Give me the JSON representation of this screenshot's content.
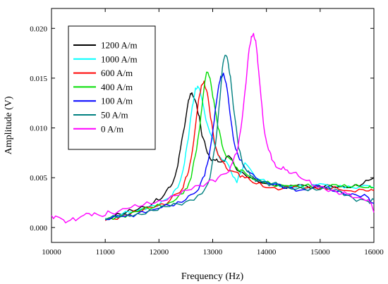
{
  "chart_data": {
    "type": "line",
    "xlabel": "Frequency (Hz)",
    "ylabel": "Amplitude (V)",
    "xlim": [
      10000,
      16000
    ],
    "ylim": [
      -0.0015,
      0.022
    ],
    "xticks": [
      10000,
      11000,
      12000,
      13000,
      14000,
      15000,
      16000
    ],
    "yticks": [
      0.0,
      0.005,
      0.01,
      0.015,
      0.02
    ],
    "xtick_labels": [
      "10000",
      "11000",
      "12000",
      "13000",
      "14000",
      "15000",
      "16000"
    ],
    "ytick_labels": [
      "0.000",
      "0.005",
      "0.010",
      "0.015",
      "0.020"
    ],
    "grid": false,
    "legend_position": "top-left",
    "series": [
      {
        "name": "1200 A/m",
        "color": "#000000",
        "x": [
          11000,
          11300,
          11600,
          11900,
          12100,
          12250,
          12350,
          12450,
          12550,
          12600,
          12650,
          12700,
          12750,
          12800,
          12900,
          13000,
          13100,
          13200,
          13300,
          13500,
          13700,
          14000,
          14300,
          14600,
          14900,
          15200,
          15500,
          15800,
          16000
        ],
        "y": [
          0.0009,
          0.0013,
          0.0018,
          0.0025,
          0.0033,
          0.0044,
          0.0062,
          0.0095,
          0.0128,
          0.0134,
          0.013,
          0.0124,
          0.0112,
          0.0092,
          0.0075,
          0.0068,
          0.0066,
          0.0067,
          0.0072,
          0.0056,
          0.005,
          0.0044,
          0.004,
          0.0043,
          0.004,
          0.0042,
          0.004,
          0.0044,
          0.005
        ]
      },
      {
        "name": "1000 A/m",
        "color": "#00FFFF",
        "x": [
          11000,
          11300,
          11600,
          11900,
          12200,
          12350,
          12450,
          12550,
          12620,
          12680,
          12720,
          12780,
          12850,
          12950,
          13050,
          13150,
          13300,
          13450,
          13600,
          13800,
          14100,
          14400,
          14700,
          15000,
          15300,
          15600,
          15900,
          16000
        ],
        "y": [
          0.0009,
          0.0013,
          0.0017,
          0.0022,
          0.003,
          0.004,
          0.0058,
          0.009,
          0.0122,
          0.014,
          0.0142,
          0.0133,
          0.0115,
          0.0095,
          0.008,
          0.007,
          0.0062,
          0.0045,
          0.0065,
          0.005,
          0.0044,
          0.0041,
          0.004,
          0.0044,
          0.0041,
          0.004,
          0.0042,
          0.0041
        ]
      },
      {
        "name": "600 A/m",
        "color": "#FF0000",
        "x": [
          11000,
          11300,
          11600,
          11900,
          12200,
          12450,
          12550,
          12650,
          12720,
          12790,
          12840,
          12900,
          12960,
          13050,
          13150,
          13250,
          13400,
          13550,
          13750,
          14000,
          14300,
          14600,
          14900,
          15200,
          15500,
          15800,
          16000
        ],
        "y": [
          0.0007,
          0.0012,
          0.0016,
          0.002,
          0.0027,
          0.004,
          0.0056,
          0.0088,
          0.012,
          0.0143,
          0.0147,
          0.0135,
          0.011,
          0.0082,
          0.0068,
          0.006,
          0.0056,
          0.0052,
          0.0045,
          0.004,
          0.0039,
          0.0041,
          0.004,
          0.0039,
          0.0037,
          0.0038,
          0.0037
        ]
      },
      {
        "name": "400 A/m",
        "color": "#00DD00",
        "x": [
          11000,
          11300,
          11600,
          11900,
          12200,
          12450,
          12600,
          12700,
          12780,
          12850,
          12900,
          12950,
          13020,
          13100,
          13200,
          13300,
          13450,
          13600,
          13800,
          14100,
          14400,
          14700,
          15000,
          15300,
          15600,
          15900,
          16000
        ],
        "y": [
          0.0008,
          0.0012,
          0.0016,
          0.002,
          0.0025,
          0.0034,
          0.005,
          0.0078,
          0.0112,
          0.0145,
          0.0156,
          0.015,
          0.0128,
          0.01,
          0.0078,
          0.007,
          0.006,
          0.0055,
          0.0048,
          0.0043,
          0.0042,
          0.0042,
          0.004,
          0.0043,
          0.0041,
          0.004,
          0.004
        ]
      },
      {
        "name": "100 A/m",
        "color": "#0000FF",
        "x": [
          11000,
          11300,
          11600,
          11900,
          12200,
          12500,
          12700,
          12850,
          12950,
          13030,
          13100,
          13150,
          13200,
          13250,
          13320,
          13400,
          13500,
          13650,
          13850,
          14100,
          14400,
          14700,
          15000,
          15300,
          15600,
          15900,
          16000
        ],
        "y": [
          0.0008,
          0.0011,
          0.0014,
          0.0018,
          0.0022,
          0.0028,
          0.0036,
          0.0052,
          0.0078,
          0.0108,
          0.0138,
          0.0152,
          0.0155,
          0.0145,
          0.0115,
          0.0085,
          0.0068,
          0.0056,
          0.0048,
          0.0043,
          0.004,
          0.0038,
          0.0041,
          0.0036,
          0.0034,
          0.003,
          0.0024
        ]
      },
      {
        "name": "50 A/m",
        "color": "#008080",
        "x": [
          11000,
          11300,
          11600,
          11900,
          12200,
          12500,
          12800,
          12950,
          13050,
          13120,
          13180,
          13230,
          13280,
          13330,
          13400,
          13480,
          13580,
          13700,
          13900,
          14100,
          14400,
          14700,
          15000,
          15300,
          15600,
          15900,
          16000
        ],
        "y": [
          0.0008,
          0.0011,
          0.0014,
          0.0017,
          0.0021,
          0.0026,
          0.0034,
          0.005,
          0.0082,
          0.0122,
          0.016,
          0.0173,
          0.0168,
          0.0152,
          0.0115,
          0.008,
          0.0062,
          0.0052,
          0.0046,
          0.0044,
          0.004,
          0.0039,
          0.0038,
          0.0038,
          0.003,
          0.0026,
          0.0028
        ]
      },
      {
        "name": "0 A/m",
        "color": "#FF00FF",
        "x": [
          10000,
          10150,
          10300,
          10500,
          10700,
          10900,
          11100,
          11400,
          11700,
          12000,
          12300,
          12600,
          12900,
          13100,
          13300,
          13450,
          13550,
          13620,
          13680,
          13720,
          13760,
          13800,
          13840,
          13900,
          13960,
          14020,
          14100,
          14200,
          14350,
          14500,
          14700,
          14900,
          15100,
          15300,
          15500,
          15700,
          15900,
          16000
        ],
        "y": [
          0.0012,
          0.001,
          0.0006,
          0.0009,
          0.0014,
          0.0012,
          0.0015,
          0.0019,
          0.0022,
          0.0027,
          0.0032,
          0.0038,
          0.0045,
          0.005,
          0.0056,
          0.0075,
          0.011,
          0.0145,
          0.018,
          0.0192,
          0.0195,
          0.0188,
          0.0165,
          0.013,
          0.0098,
          0.0082,
          0.0068,
          0.006,
          0.0058,
          0.0055,
          0.0048,
          0.0042,
          0.0038,
          0.0036,
          0.0034,
          0.003,
          0.0028,
          0.0015
        ]
      }
    ]
  }
}
